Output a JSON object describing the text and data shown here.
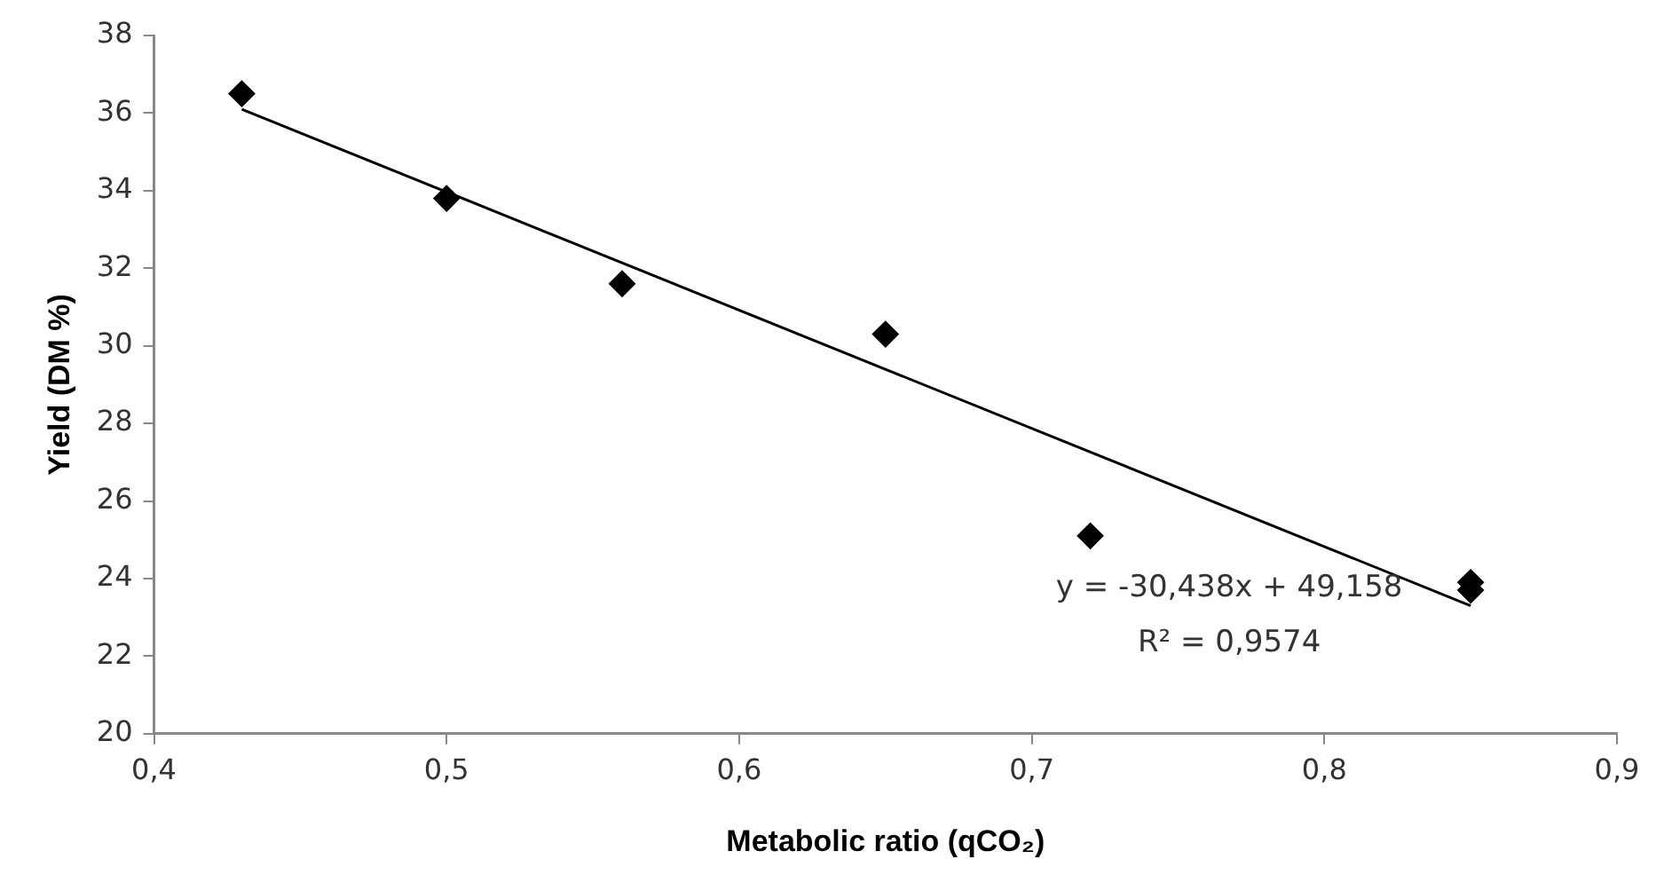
{
  "chart_data": {
    "type": "scatter",
    "xlabel": "Metabolic ratio (qCO₂)",
    "ylabel": "Yield (DM %)",
    "series": [
      {
        "type": "scatter",
        "color": "#000000",
        "x": [
          0.43,
          0.5,
          0.56,
          0.65,
          0.72,
          0.85,
          0.85
        ],
        "values": [
          36.5,
          33.8,
          31.6,
          30.3,
          25.1,
          23.9,
          23.7
        ]
      },
      {
        "type": "line",
        "color": "#000000",
        "marker": "none",
        "x": [
          0.43,
          0.85
        ],
        "values": [
          36.1,
          23.3
        ]
      }
    ],
    "marker": "diamond",
    "xlim": [
      0.4,
      0.9
    ],
    "xticks": [
      {
        "value": 0.4,
        "label": "0,4"
      },
      {
        "value": 0.5,
        "label": "0,5"
      },
      {
        "value": 0.6,
        "label": "0,6"
      },
      {
        "value": 0.7,
        "label": "0,7"
      },
      {
        "value": 0.8,
        "label": "0,8"
      },
      {
        "value": 0.9,
        "label": "0,9"
      }
    ],
    "ylim": [
      20,
      38
    ],
    "yticks": [
      20,
      22,
      24,
      26,
      28,
      30,
      32,
      34,
      36,
      38
    ],
    "annotations": [
      "y = -30,438x + 49,158",
      "R² = 0,9574"
    ],
    "grid": false,
    "legend": false
  }
}
